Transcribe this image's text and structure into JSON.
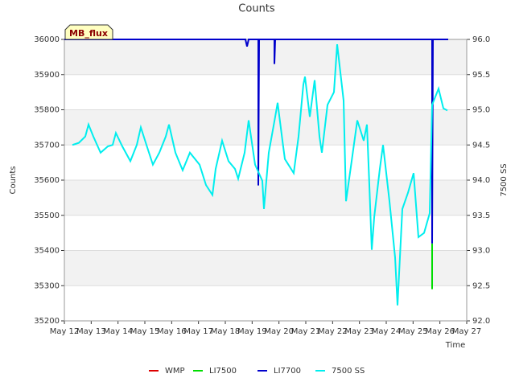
{
  "chart_data": {
    "type": "line",
    "title": "Counts",
    "badge": "MB_flux",
    "xlabel": "Time",
    "ylabel": "Counts",
    "y2label": "7500 SS",
    "xlim": [
      12,
      27
    ],
    "xticks": [
      {
        "value": 12,
        "label": "May 12"
      },
      {
        "value": 13,
        "label": "May 13"
      },
      {
        "value": 14,
        "label": "May 14"
      },
      {
        "value": 15,
        "label": "May 15"
      },
      {
        "value": 16,
        "label": "May 16"
      },
      {
        "value": 17,
        "label": "May 17"
      },
      {
        "value": 18,
        "label": "May 18"
      },
      {
        "value": 19,
        "label": "May 19"
      },
      {
        "value": 20,
        "label": "May 20"
      },
      {
        "value": 21,
        "label": "May 21"
      },
      {
        "value": 22,
        "label": "May 22"
      },
      {
        "value": 23,
        "label": "May 23"
      },
      {
        "value": 24,
        "label": "May 24"
      },
      {
        "value": 25,
        "label": "May 25"
      },
      {
        "value": 26,
        "label": "May 26"
      },
      {
        "value": 27,
        "label": "May 27"
      }
    ],
    "ylim": [
      35200,
      36000
    ],
    "yticks": [
      35200,
      35300,
      35400,
      35500,
      35600,
      35700,
      35800,
      35900,
      36000
    ],
    "y2lim": [
      92,
      96
    ],
    "y2ticks": [
      {
        "value": 92,
        "label": "92.0"
      },
      {
        "value": 92.5,
        "label": "92.5"
      },
      {
        "value": 93,
        "label": "93.0"
      },
      {
        "value": 93.5,
        "label": "93.5"
      },
      {
        "value": 94,
        "label": "94.0"
      },
      {
        "value": 94.5,
        "label": "94.5"
      },
      {
        "value": 95,
        "label": "95.0"
      },
      {
        "value": 95.5,
        "label": "95.5"
      },
      {
        "value": 96,
        "label": "96.0"
      }
    ],
    "grid": true,
    "series": [
      {
        "name": "WMP",
        "color": "#dd0000",
        "x": [],
        "values": []
      },
      {
        "name": "LI7500",
        "color": "#00dd00",
        "x": [
          25.71,
          25.71
        ],
        "values": [
          35290,
          35420
        ]
      },
      {
        "name": "LI7700",
        "color": "#0000cc",
        "x": [
          12.0,
          18.75,
          18.81,
          18.87,
          19.23,
          19.23,
          19.26,
          19.83,
          19.83,
          19.86,
          25.71,
          25.71,
          25.74,
          26.31
        ],
        "values": [
          36000,
          36000,
          35980,
          36000,
          36000,
          35585,
          36000,
          36000,
          35930,
          36000,
          36000,
          35420,
          36000,
          36000
        ]
      },
      {
        "name": "7500 SS",
        "color": "#00eeee",
        "axis": "y2",
        "x": [
          12.3,
          12.54,
          12.78,
          12.9,
          13.08,
          13.35,
          13.62,
          13.8,
          13.92,
          14.16,
          14.46,
          14.7,
          14.85,
          15.06,
          15.3,
          15.54,
          15.78,
          15.9,
          16.14,
          16.41,
          16.68,
          17.04,
          17.28,
          17.52,
          17.64,
          17.88,
          18.12,
          18.36,
          18.48,
          18.72,
          18.87,
          19.11,
          19.38,
          19.44,
          19.62,
          19.86,
          19.95,
          20.13,
          20.22,
          20.55,
          20.73,
          20.91,
          20.97,
          21.15,
          21.33,
          21.51,
          21.6,
          21.81,
          22.05,
          22.17,
          22.29,
          22.41,
          22.5,
          22.71,
          22.92,
          23.16,
          23.28,
          23.37,
          23.46,
          23.55,
          23.76,
          23.88,
          24.12,
          24.33,
          24.42,
          24.6,
          24.81,
          25.02,
          25.2,
          25.41,
          25.62,
          25.71,
          25.95,
          26.13,
          26.28
        ],
        "values": [
          94.5,
          94.53,
          94.62,
          94.79,
          94.62,
          94.39,
          94.48,
          94.5,
          94.67,
          94.48,
          94.27,
          94.5,
          94.75,
          94.5,
          94.22,
          94.39,
          94.62,
          94.79,
          94.39,
          94.14,
          94.39,
          94.22,
          93.93,
          93.79,
          94.16,
          94.56,
          94.27,
          94.16,
          94.02,
          94.39,
          94.85,
          94.22,
          93.99,
          93.59,
          94.39,
          94.9,
          95.1,
          94.56,
          94.3,
          94.1,
          94.62,
          95.36,
          95.47,
          94.9,
          95.42,
          94.62,
          94.39,
          95.07,
          95.25,
          95.93,
          95.53,
          95.13,
          93.7,
          94.27,
          94.85,
          94.56,
          94.79,
          93.93,
          93.01,
          93.47,
          94.16,
          94.5,
          93.7,
          92.9,
          92.22,
          93.59,
          93.82,
          94.1,
          93.19,
          93.25,
          93.53,
          95.07,
          95.3,
          95.02,
          94.99
        ]
      }
    ]
  }
}
